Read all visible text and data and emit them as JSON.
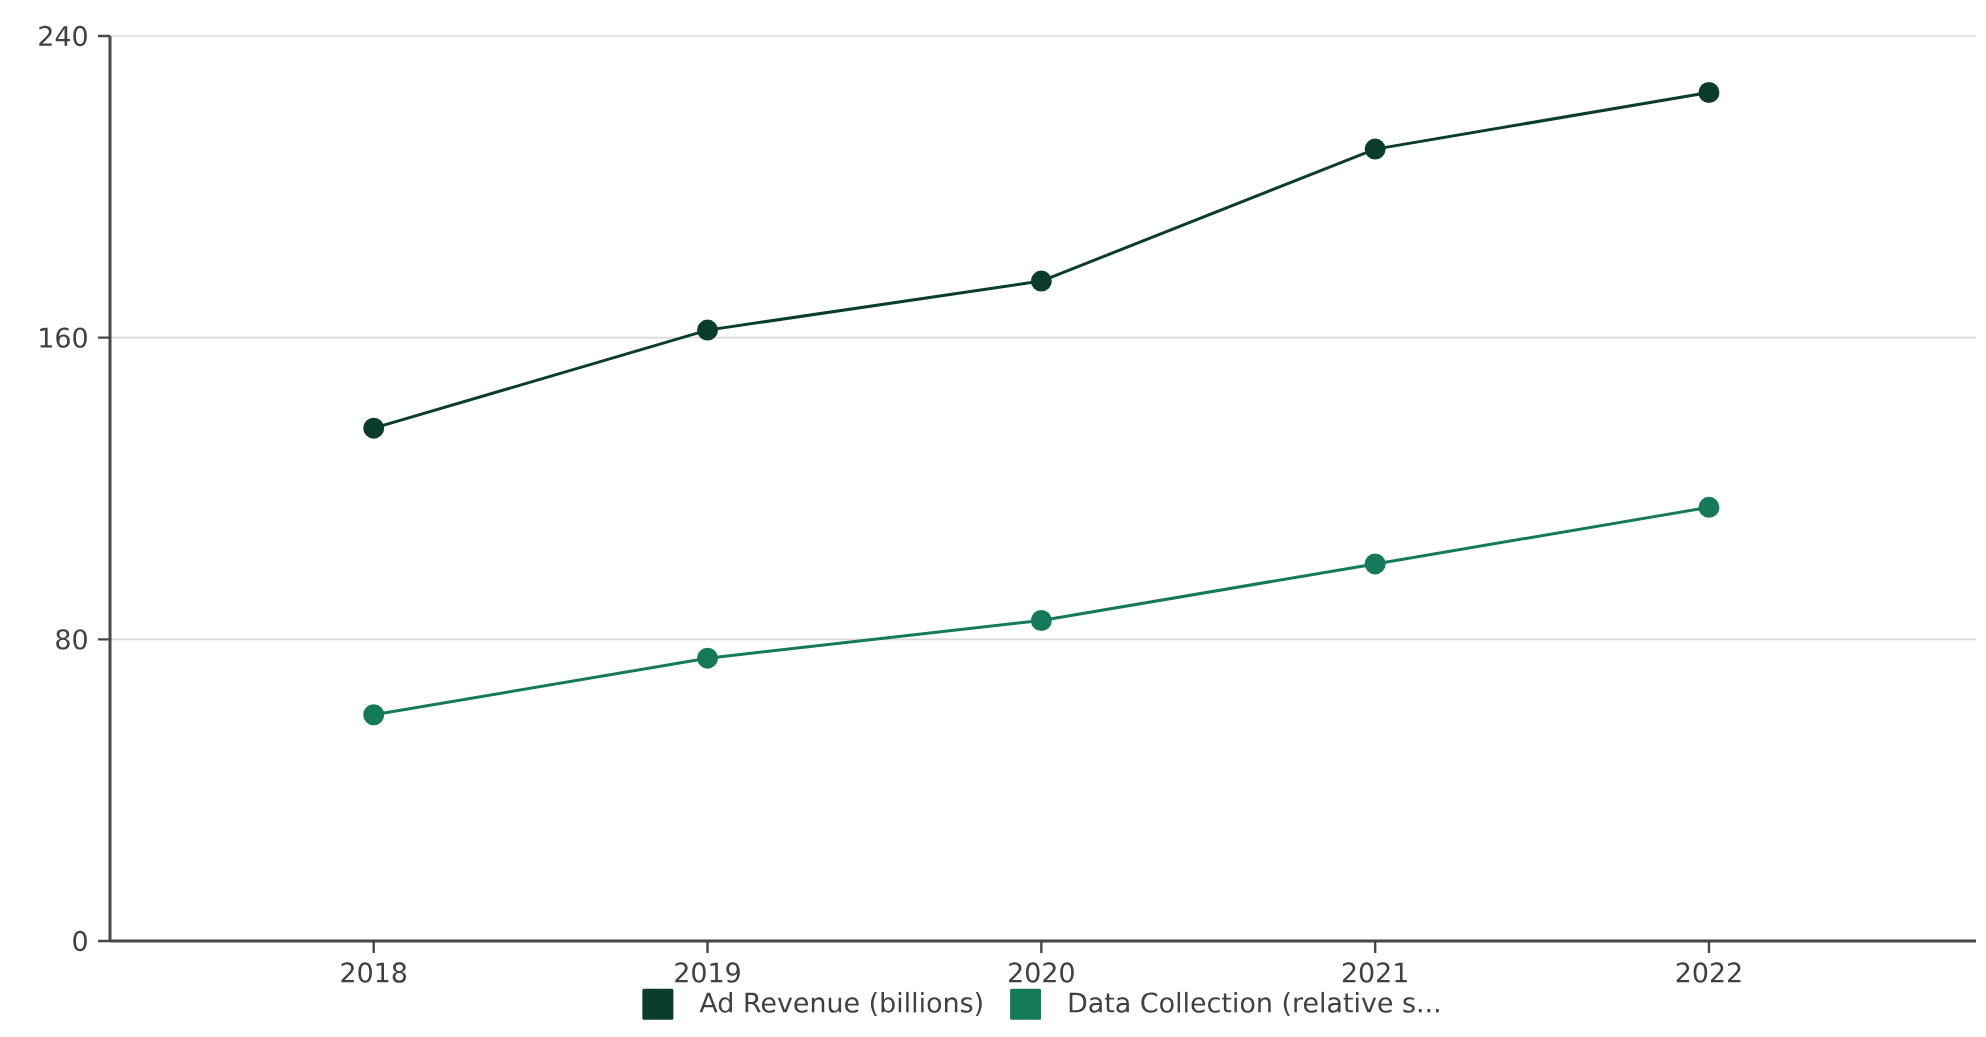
{
  "chart_data": {
    "type": "line",
    "categories": [
      "2018",
      "2019",
      "2020",
      "2021",
      "2022"
    ],
    "series": [
      {
        "name": "Ad Revenue (billions)",
        "color": "#0b3d2e",
        "values": [
          136,
          162,
          175,
          210,
          225
        ]
      },
      {
        "name": "Data Collection (relative s...",
        "color": "#157a5a",
        "values": [
          60,
          75,
          85,
          100,
          115
        ]
      }
    ],
    "ylim": [
      0,
      240
    ],
    "yticks": [
      0,
      80,
      160,
      240
    ],
    "grid": "y",
    "legend": "bottom",
    "marker": "circle",
    "line_style": "solid"
  }
}
